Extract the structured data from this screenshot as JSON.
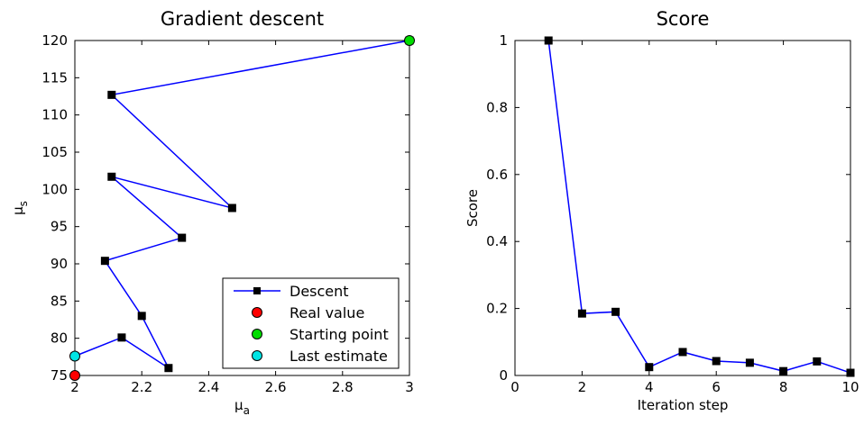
{
  "chart_data": [
    {
      "type": "line",
      "title": "Gradient descent",
      "xlabel": "μ",
      "xlabel_sub": "a",
      "ylabel": "μ",
      "ylabel_sub": "s",
      "xlim": [
        2,
        3
      ],
      "ylim": [
        75,
        120
      ],
      "xticks": [
        "2",
        "2.2",
        "2.4",
        "2.6",
        "2.8",
        "3"
      ],
      "yticks": [
        "75",
        "80",
        "85",
        "90",
        "95",
        "100",
        "105",
        "110",
        "115",
        "120"
      ],
      "grid": false,
      "legend_position": "bottom-right",
      "series": [
        {
          "name": "Descent",
          "color": "#0000ff",
          "marker": "square",
          "marker_color": "#000000",
          "x": [
            3.0,
            2.11,
            2.47,
            2.11,
            2.32,
            2.09,
            2.2,
            2.28,
            2.14,
            2.0
          ],
          "y": [
            120,
            112.7,
            97.5,
            101.7,
            93.5,
            90.4,
            83.0,
            76.0,
            80.1,
            77.6
          ]
        },
        {
          "name": "Real value",
          "color": "#ff0000",
          "marker": "circle",
          "x": [
            2.0
          ],
          "y": [
            75.0
          ]
        },
        {
          "name": "Starting point",
          "color": "#00dd00",
          "marker": "circle",
          "x": [
            3.0
          ],
          "y": [
            120.0
          ]
        },
        {
          "name": "Last estimate",
          "color": "#00e5e5",
          "marker": "circle",
          "x": [
            2.0
          ],
          "y": [
            77.6
          ]
        }
      ]
    },
    {
      "type": "line",
      "title": "Score",
      "xlabel": "Iteration step",
      "ylabel": "Score",
      "xlim": [
        0,
        10
      ],
      "ylim": [
        0,
        1
      ],
      "xticks": [
        "0",
        "2",
        "4",
        "6",
        "8",
        "10"
      ],
      "yticks": [
        "0",
        "0.2",
        "0.4",
        "0.6",
        "0.8",
        "1"
      ],
      "grid": false,
      "series": [
        {
          "color": "#0000ff",
          "marker": "square",
          "marker_color": "#000000",
          "x": [
            1,
            2,
            3,
            4,
            5,
            6,
            7,
            8,
            9,
            10
          ],
          "y": [
            1.0,
            0.185,
            0.19,
            0.025,
            0.07,
            0.043,
            0.038,
            0.013,
            0.042,
            0.008
          ]
        }
      ]
    }
  ]
}
